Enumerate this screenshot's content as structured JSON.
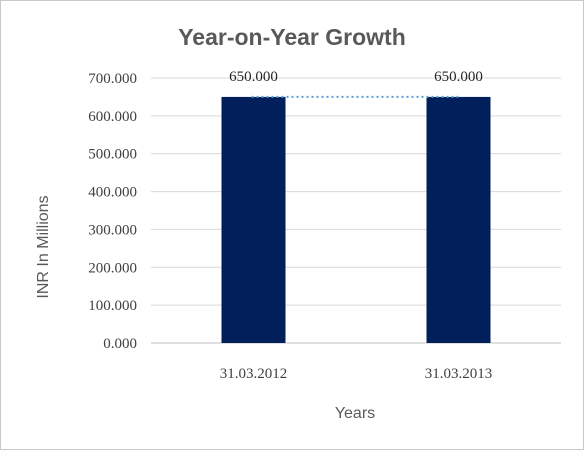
{
  "chart_data": {
    "type": "bar",
    "title": "Year-on-Year Growth",
    "xlabel": "Years",
    "ylabel": "INR In Millions",
    "categories": [
      "31.03.2012",
      "31.03.2013"
    ],
    "series": [
      {
        "values": [
          650,
          650
        ]
      }
    ],
    "data_labels": [
      "650.000",
      "650.000"
    ],
    "ylim": [
      0,
      700
    ],
    "y_ticks": [
      0,
      100,
      200,
      300,
      400,
      500,
      600,
      700
    ],
    "y_tick_labels": [
      "0.000",
      "100.000",
      "200.000",
      "300.000",
      "400.000",
      "500.000",
      "600.000",
      "700.000"
    ],
    "grid": true,
    "legend": "none",
    "trendline": "dotted line connecting bar tops",
    "colors": {
      "bar": "#001f5b",
      "trendline": "#5b9bd5",
      "gridline": "#d9d9d9",
      "text": "#404040"
    }
  }
}
